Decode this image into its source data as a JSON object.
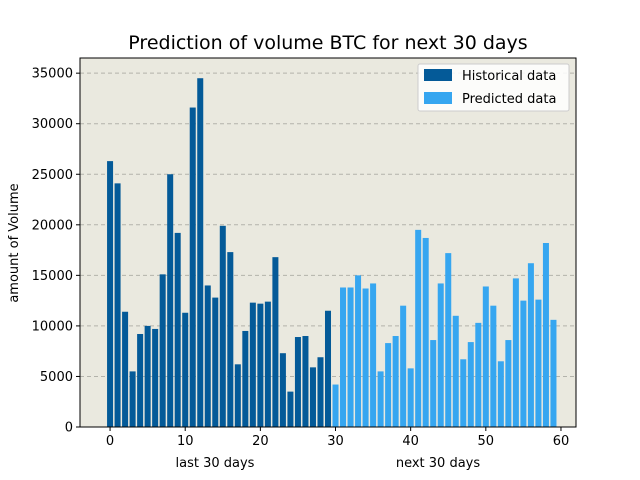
{
  "chart_data": {
    "type": "bar",
    "title": "Prediction of volume BTC for next 30 days",
    "ylabel": "amount of Volume",
    "xlabels": [
      "last 30 days",
      "next 30 days"
    ],
    "xlim": [
      -4,
      62
    ],
    "ylim": [
      0,
      36500
    ],
    "xticks": [
      0,
      10,
      20,
      30,
      40,
      50,
      60
    ],
    "yticks": [
      0,
      5000,
      10000,
      15000,
      20000,
      25000,
      30000,
      35000
    ],
    "grid": "horizontal dashed",
    "legend_position": "top-right",
    "background": "#eae9df",
    "series": [
      {
        "name": "Historical data",
        "color": "#045a98",
        "x": [
          0,
          1,
          2,
          3,
          4,
          5,
          6,
          7,
          8,
          9,
          10,
          11,
          12,
          13,
          14,
          15,
          16,
          17,
          18,
          19,
          20,
          21,
          22,
          23,
          24,
          25,
          26,
          27,
          28,
          29
        ],
        "values": [
          26300,
          24100,
          11400,
          5500,
          9200,
          10000,
          9700,
          15100,
          25000,
          19200,
          11300,
          31600,
          34500,
          14000,
          12800,
          19900,
          17300,
          6200,
          9500,
          12300,
          12200,
          12400,
          16800,
          7300,
          3500,
          8900,
          9000,
          5900,
          6900,
          11500
        ]
      },
      {
        "name": "Predicted data",
        "color": "#36a6f0",
        "x": [
          30,
          31,
          32,
          33,
          34,
          35,
          36,
          37,
          38,
          39,
          40,
          41,
          42,
          43,
          44,
          45,
          46,
          47,
          48,
          49,
          50,
          51,
          52,
          53,
          54,
          55,
          56,
          57,
          58,
          59
        ],
        "values": [
          4200,
          13800,
          13800,
          15000,
          13700,
          14200,
          5500,
          8300,
          9000,
          12000,
          5800,
          19500,
          18700,
          8600,
          14200,
          17200,
          11000,
          6700,
          8400,
          10300,
          13900,
          12000,
          6500,
          8600,
          14700,
          12500,
          16200,
          12600,
          18200,
          10600
        ]
      }
    ]
  }
}
